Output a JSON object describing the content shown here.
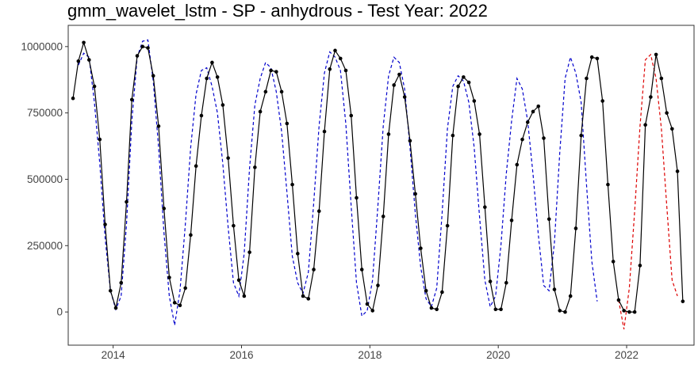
{
  "chart_data": {
    "type": "line",
    "title": "gmm_wavelet_lstm - SP - anhydrous - Test Year: 2022",
    "xlabel": "",
    "ylabel": "",
    "x_range": [
      2013.3,
      2023.05
    ],
    "y_range": [
      -125000,
      1080000
    ],
    "x_ticks": [
      2014,
      2016,
      2018,
      2020,
      2022
    ],
    "x_tick_labels": [
      "2014",
      "2016",
      "2018",
      "2020",
      "2022"
    ],
    "y_ticks": [
      0,
      250000,
      500000,
      750000,
      1000000
    ],
    "y_tick_labels": [
      "0",
      "250000",
      "500000",
      "750000",
      "1000000"
    ],
    "grid": false,
    "legend": "none",
    "colors": {
      "actual": "#000000",
      "fitted": "#0000cc",
      "forecast": "#dd0000"
    },
    "series": [
      {
        "role": "actual",
        "style": "solid-line-with-points",
        "x_start": 2013.375,
        "step": 0.08333333,
        "values": [
          805000,
          945000,
          1015000,
          950000,
          850000,
          650000,
          330000,
          80000,
          15000,
          110000,
          415000,
          800000,
          965000,
          1000000,
          995000,
          890000,
          700000,
          390000,
          130000,
          35000,
          25000,
          90000,
          290000,
          550000,
          740000,
          880000,
          940000,
          885000,
          780000,
          580000,
          325000,
          120000,
          60000,
          225000,
          545000,
          755000,
          830000,
          910000,
          905000,
          830000,
          710000,
          480000,
          220000,
          60000,
          50000,
          160000,
          380000,
          680000,
          915000,
          985000,
          955000,
          910000,
          740000,
          430000,
          160000,
          30000,
          5000,
          100000,
          360000,
          670000,
          855000,
          895000,
          810000,
          645000,
          445000,
          240000,
          80000,
          15000,
          10000,
          75000,
          325000,
          665000,
          850000,
          885000,
          865000,
          795000,
          670000,
          395000,
          115000,
          10000,
          10000,
          110000,
          345000,
          555000,
          650000,
          715000,
          755000,
          775000,
          655000,
          350000,
          85000,
          5000,
          0,
          60000,
          315000,
          665000,
          880000,
          960000,
          955000,
          795000,
          480000,
          190000,
          45000,
          5000,
          0,
          0,
          175000,
          705000,
          810000,
          970000,
          880000,
          750000,
          690000,
          530000,
          40000
        ]
      },
      {
        "role": "fitted",
        "style": "dashed-line",
        "x_start": 2013.458,
        "step": 0.08333333,
        "values": [
          930000,
          975000,
          960000,
          790000,
          560000,
          280000,
          80000,
          10000,
          60000,
          330000,
          720000,
          960000,
          1020000,
          1025000,
          870000,
          620000,
          300000,
          60000,
          -50000,
          80000,
          330000,
          620000,
          820000,
          910000,
          920000,
          850000,
          750000,
          560000,
          320000,
          110000,
          60000,
          220000,
          540000,
          780000,
          880000,
          940000,
          920000,
          830000,
          680000,
          450000,
          210000,
          110000,
          70000,
          150000,
          410000,
          700000,
          900000,
          980000,
          960000,
          910000,
          710000,
          400000,
          110000,
          -15000,
          5000,
          120000,
          400000,
          700000,
          890000,
          960000,
          940000,
          840000,
          620000,
          370000,
          170000,
          50000,
          20000,
          90000,
          370000,
          690000,
          850000,
          890000,
          870000,
          790000,
          620000,
          360000,
          120000,
          20000,
          60000,
          250000,
          520000,
          720000,
          880000,
          840000,
          720000,
          520000,
          290000,
          100000,
          80000,
          260000,
          600000,
          880000,
          960000,
          900000,
          790000,
          480000,
          190000,
          40000
        ]
      },
      {
        "role": "forecast",
        "style": "dashed-line",
        "x_start": 2021.875,
        "step": 0.08333333,
        "values": [
          45000,
          -65000,
          90000,
          380000,
          700000,
          950000,
          970000,
          880000,
          690000,
          400000,
          120000,
          60000
        ]
      }
    ]
  }
}
